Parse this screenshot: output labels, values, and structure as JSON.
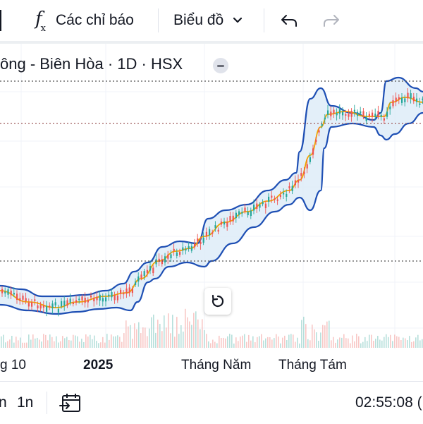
{
  "toolbar": {
    "indicators_icon": "fx-icon",
    "indicators_label": "Các chỉ báo",
    "chart_type_label": "Biểu đồ",
    "undo_icon": "undo-icon",
    "redo_icon": "redo-icon"
  },
  "legend": {
    "title": "ông - Biên Hòa · 1D · HSX"
  },
  "x_axis": {
    "labels": [
      "g 10",
      "2025",
      "Tháng Năm",
      "Tháng Tám"
    ]
  },
  "bottom_bar": {
    "range_1": "n",
    "range_2": "1n",
    "date_range_icon": "calendar-arrow-icon",
    "clock": "02:55:08 ("
  },
  "colors": {
    "accent": "#2962ff",
    "band_line": "#1e4fb4",
    "band_fill": "#dcebf8",
    "basis_line": "#f0a500",
    "up": "#26a69a",
    "down": "#ef5350"
  },
  "chart_data": {
    "type": "candlestick",
    "indicator": "Bollinger Bands",
    "x": [
      "g 10",
      "2025",
      "Tháng Năm",
      "Tháng Tám"
    ],
    "close_trend": [
      {
        "x": "g 10",
        "y": 0.05
      },
      {
        "x": "2025",
        "y": 0.1
      },
      {
        "x": "Tháng Năm",
        "y": 0.45
      },
      {
        "x": "Tháng Tám",
        "y": 0.82
      }
    ],
    "grid": true,
    "price_lines": 3
  }
}
